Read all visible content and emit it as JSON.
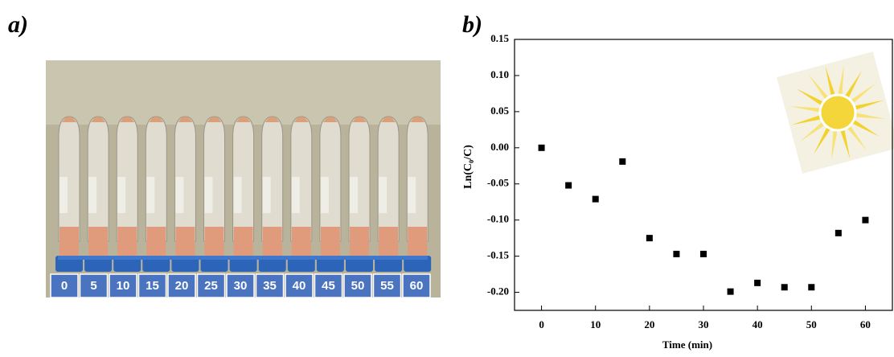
{
  "panels": {
    "a": "a)",
    "b": "b)"
  },
  "photo": {
    "labels": [
      "0",
      "5",
      "10",
      "15",
      "20",
      "25",
      "30",
      "35",
      "40",
      "45",
      "50",
      "55",
      "60"
    ]
  },
  "chart_data": {
    "type": "scatter",
    "x_label": "Time (min)",
    "y_label": "Ln(C₀/C)",
    "x": [
      0,
      5,
      10,
      15,
      20,
      25,
      30,
      35,
      40,
      45,
      50,
      55,
      60
    ],
    "values": [
      0,
      -0.052,
      -0.071,
      -0.019,
      -0.125,
      -0.147,
      -0.147,
      -0.199,
      -0.187,
      -0.193,
      -0.193,
      -0.118,
      -0.1
    ],
    "color": "#000000",
    "xlim": [
      -5,
      65
    ],
    "ylim": [
      -0.225,
      0.15
    ],
    "xticks": [
      0,
      10,
      20,
      30,
      40,
      50,
      60
    ],
    "yticks": [
      0.15,
      {
        "value": 0.1,
        "label": "0.10"
      },
      0.05,
      {
        "value": 0,
        "label": "0.00"
      },
      -0.05,
      {
        "value": -0.1,
        "label": "-0.10"
      },
      -0.15,
      {
        "value": -0.2,
        "label": "-0.20"
      }
    ]
  }
}
